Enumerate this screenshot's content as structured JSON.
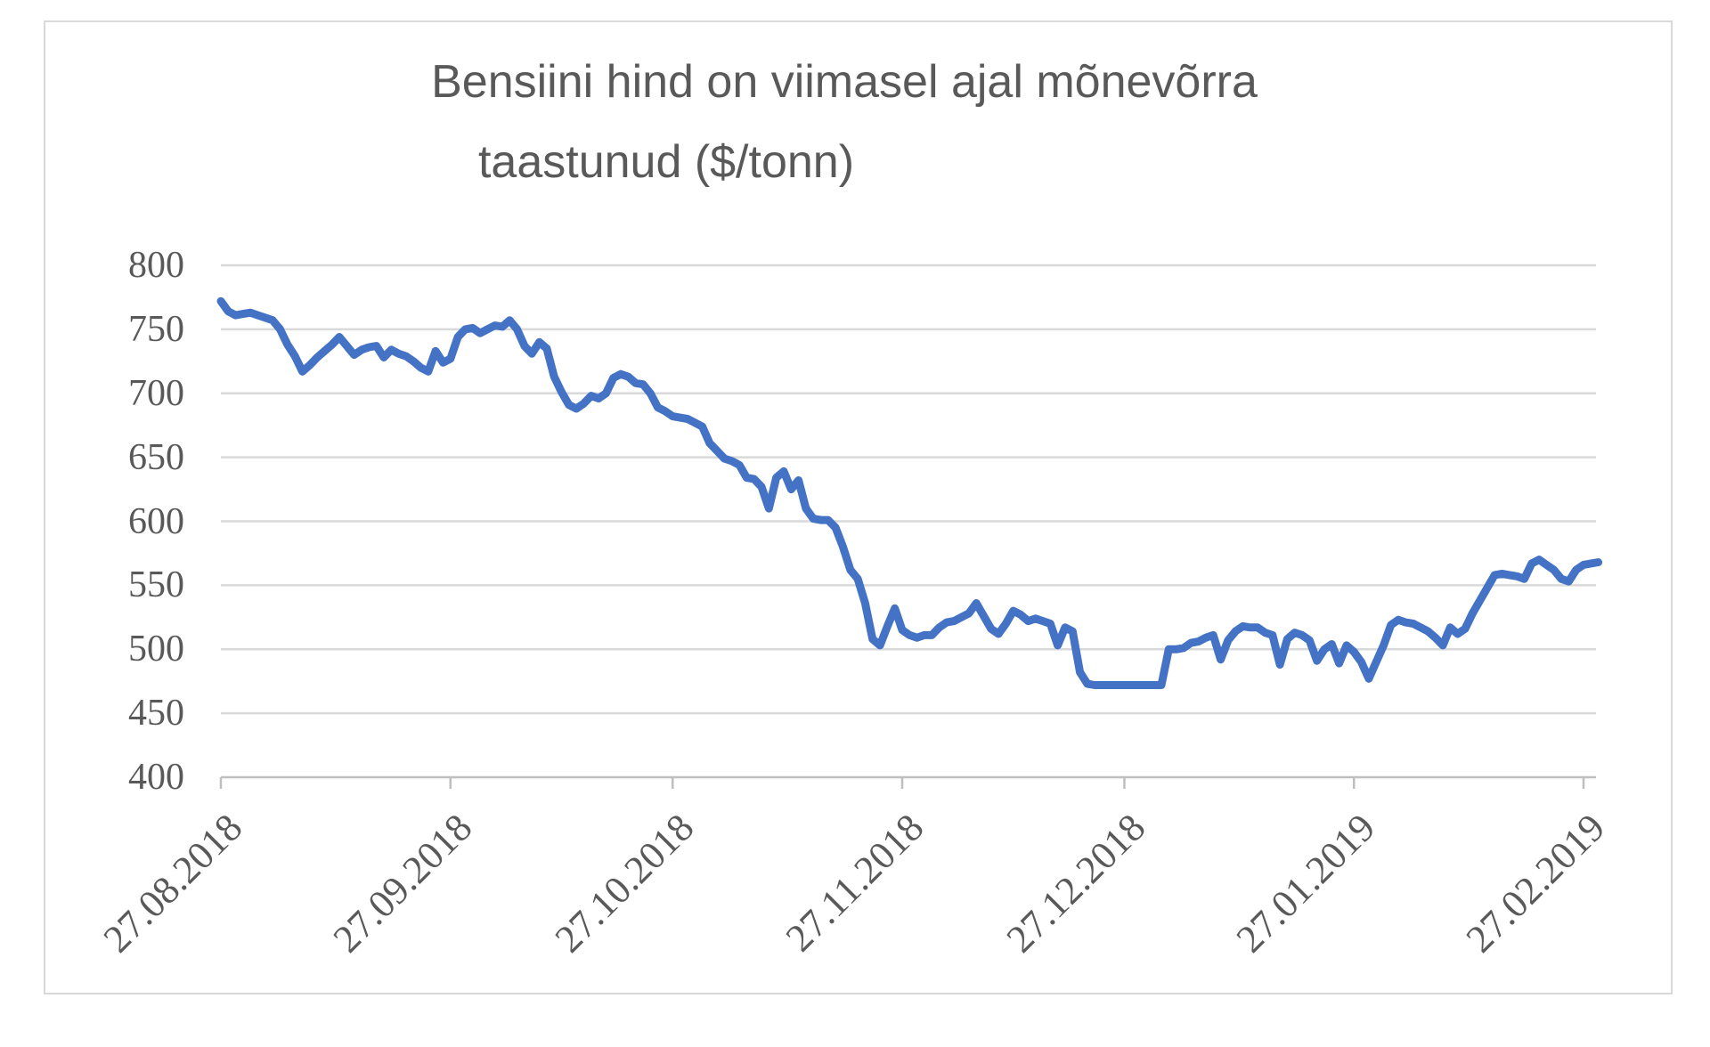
{
  "chart": {
    "title_line1": "Bensiini hind on viimasel ajal mõnevõrra",
    "title_line2": "taastunud ($/tonn)",
    "colors": {
      "line": "#4472C4",
      "gridline": "#D9D9D9",
      "axis": "#BFBFBF",
      "text": "#595959",
      "frame_border": "#D9D9D9",
      "background": "#FFFFFF"
    }
  },
  "chart_data": {
    "type": "line",
    "title": "Bensiini hind on viimasel ajal mõnevõrra taastunud ($/tonn)",
    "xlabel": "",
    "ylabel": "",
    "ylim": [
      400,
      800
    ],
    "y_tick_values": [
      800,
      750,
      700,
      650,
      600,
      550,
      500,
      450,
      400
    ],
    "y_tick_labels": [
      "800",
      "750",
      "700",
      "650",
      "600",
      "550",
      "500",
      "450",
      "400"
    ],
    "x_cadence": "daily",
    "x_start_date": "27.08.2018",
    "x_end_date": "01.03.2019",
    "x_tick_labels": [
      "27.08.2018",
      "27.09.2018",
      "27.10.2018",
      "27.11.2018",
      "27.12.2018",
      "27.01.2019",
      "27.02.2019"
    ],
    "x_tick_indices": [
      0,
      31,
      61,
      92,
      122,
      153,
      184
    ],
    "grid": "horizontal",
    "legend_position": "none",
    "series_name": "Bensiini hind ($/tonn)",
    "values": [
      772,
      764,
      761,
      762,
      763,
      761,
      759,
      757,
      750,
      738,
      729,
      717,
      722,
      728,
      733,
      738,
      744,
      737,
      730,
      734,
      736,
      737,
      728,
      734,
      731,
      729,
      725,
      720,
      717,
      733,
      724,
      727,
      744,
      750,
      751,
      747,
      750,
      753,
      752,
      757,
      750,
      737,
      731,
      740,
      735,
      713,
      701,
      691,
      688,
      692,
      698,
      696,
      700,
      712,
      715,
      713,
      708,
      707,
      700,
      689,
      686,
      682,
      681,
      680,
      677,
      674,
      661,
      655,
      649,
      647,
      644,
      634,
      633,
      627,
      610,
      634,
      639,
      625,
      632,
      610,
      602,
      601,
      601,
      595,
      580,
      562,
      555,
      536,
      508,
      503,
      518,
      532,
      515,
      511,
      509,
      511,
      511,
      517,
      521,
      522,
      525,
      528,
      536,
      526,
      516,
      512,
      520,
      530,
      527,
      522,
      524,
      522,
      520,
      503,
      517,
      514,
      482,
      473,
      472,
      472,
      472,
      472,
      472,
      472,
      472,
      472,
      472,
      472,
      500,
      500,
      501,
      505,
      506,
      509,
      511,
      492,
      507,
      514,
      518,
      517,
      517,
      513,
      511,
      488,
      508,
      513,
      511,
      507,
      491,
      500,
      504,
      489,
      503,
      498,
      490,
      477,
      490,
      503,
      519,
      523,
      521,
      520,
      517,
      514,
      509,
      503,
      517,
      512,
      516,
      528,
      538,
      548,
      558,
      559,
      558,
      557,
      555,
      567,
      570,
      566,
      562,
      555,
      553,
      562,
      566,
      567,
      568
    ]
  }
}
